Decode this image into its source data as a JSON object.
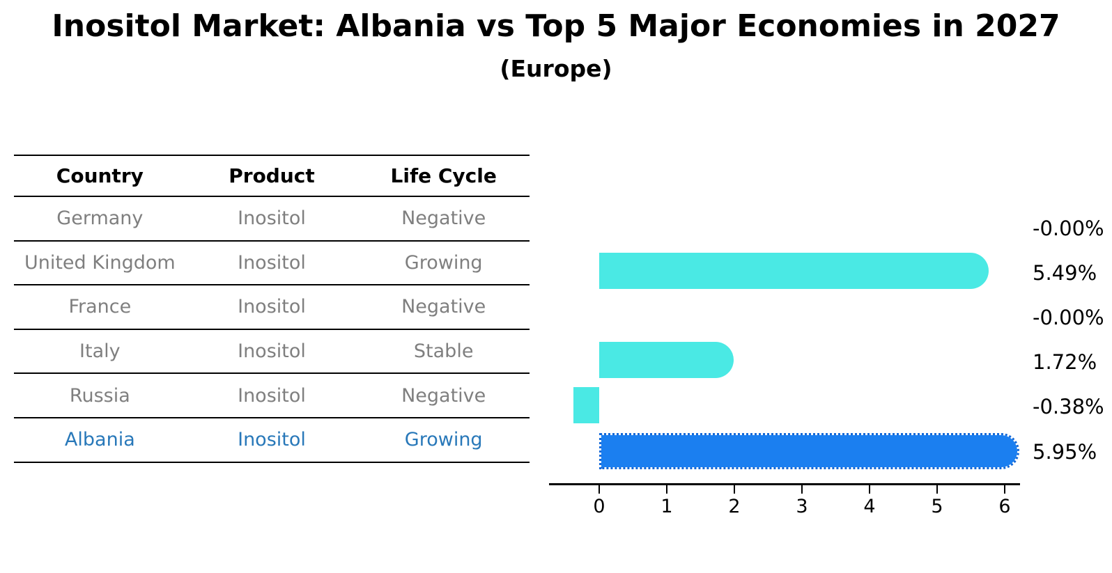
{
  "title": "Inositol Market: Albania vs Top 5 Major Economies in 2027",
  "subtitle": "(Europe)",
  "colors": {
    "bar_default": "#4AE9E4",
    "bar_highlight": "#1B7FF0",
    "highlight_border": "#1268D8",
    "highlight_text": "#2878B9",
    "row_text": "#7F7F7F",
    "axis_text": "#000000"
  },
  "table": {
    "headers": [
      "Country",
      "Product",
      "Life Cycle"
    ],
    "rows": [
      {
        "country": "Germany",
        "product": "Inositol",
        "life_cycle": "Negative",
        "highlight": false
      },
      {
        "country": "United Kingdom",
        "product": "Inositol",
        "life_cycle": "Growing",
        "highlight": false
      },
      {
        "country": "France",
        "product": "Inositol",
        "life_cycle": "Negative",
        "highlight": false
      },
      {
        "country": "Italy",
        "product": "Inositol",
        "life_cycle": "Stable",
        "highlight": false
      },
      {
        "country": "Russia",
        "product": "Inositol",
        "life_cycle": "Negative",
        "highlight": false
      },
      {
        "country": "Albania",
        "product": "Inositol",
        "life_cycle": "Growing",
        "highlight": true
      }
    ]
  },
  "chart_data": {
    "type": "bar",
    "orientation": "horizontal",
    "title": "Inositol Market: Albania vs Top 5 Major Economies in 2027",
    "subtitle": "(Europe)",
    "categories": [
      "Germany",
      "United Kingdom",
      "France",
      "Italy",
      "Russia",
      "Albania"
    ],
    "values": [
      -0.0,
      5.49,
      -0.0,
      1.72,
      -0.38,
      5.95
    ],
    "value_labels": [
      "-0.00%",
      "5.49%",
      "-0.00%",
      "1.72%",
      "-0.38%",
      "5.95%"
    ],
    "x_ticks": [
      "0",
      "1",
      "2",
      "3",
      "4",
      "5",
      "6"
    ],
    "xlim": [
      -0.74,
      6.23
    ],
    "highlight_index": 5,
    "grid": false,
    "legend": false,
    "xlabel": "",
    "ylabel": ""
  }
}
